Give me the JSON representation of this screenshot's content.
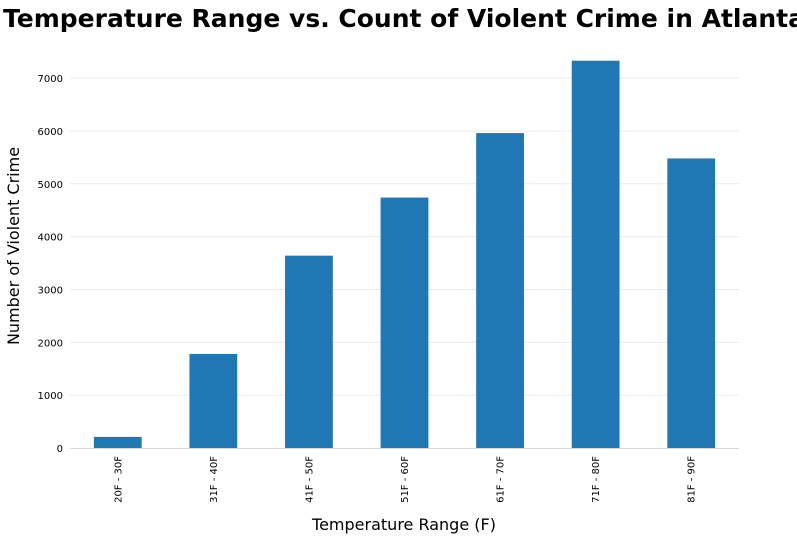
{
  "chart_data": {
    "type": "bar",
    "title": "Temperature Range vs. Count of Violent Crime in Atlanta",
    "xlabel": "Temperature Range (F)",
    "ylabel": "Number of Violent Crime",
    "categories": [
      "20F - 30F",
      "31F - 40F",
      "41F - 50F",
      "51F - 60F",
      "61F - 70F",
      "71F - 80F",
      "81F - 90F"
    ],
    "values": [
      210,
      1780,
      3640,
      4740,
      5960,
      7330,
      5480
    ],
    "ylim": [
      0,
      7400
    ],
    "yticks": [
      0,
      1000,
      2000,
      3000,
      4000,
      5000,
      6000,
      7000
    ],
    "grid": true,
    "legend": "none",
    "bar_color": "#1f77b4"
  }
}
